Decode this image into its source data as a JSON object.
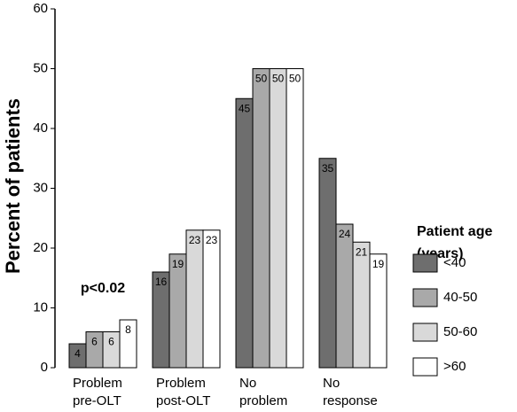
{
  "chart_data": {
    "type": "bar",
    "y_label": "Percent of patients",
    "annotation": "p<0.02",
    "legend_title": [
      "Patient age",
      "(years)"
    ],
    "categories": [
      [
        "Problem",
        "pre-OLT"
      ],
      [
        "Problem",
        "post-OLT"
      ],
      [
        "No",
        "problem"
      ],
      [
        "No",
        "response"
      ]
    ],
    "series": [
      {
        "name": "<40",
        "color": "#6e6e6e",
        "values": [
          4,
          16,
          45,
          35
        ]
      },
      {
        "name": "40-50",
        "color": "#a9a9a9",
        "values": [
          6,
          19,
          50,
          24
        ]
      },
      {
        "name": "50-60",
        "color": "#d9d9d9",
        "values": [
          6,
          23,
          50,
          21
        ]
      },
      {
        "name": ">60",
        "color": "#ffffff",
        "values": [
          8,
          23,
          50,
          19
        ]
      }
    ],
    "ylim": [
      0,
      60
    ],
    "yticks": [
      0,
      10,
      20,
      30,
      40,
      50,
      60
    ]
  }
}
